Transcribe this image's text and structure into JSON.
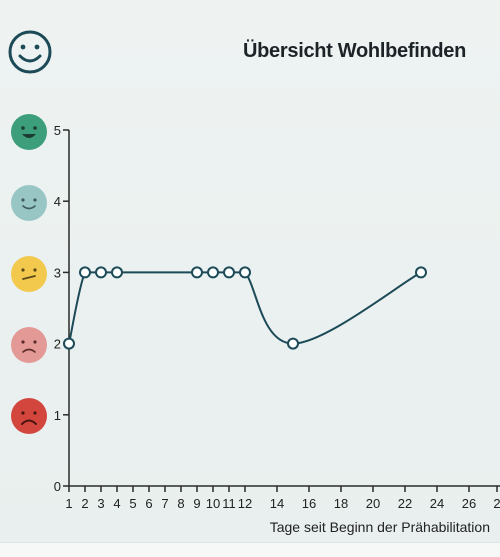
{
  "header": {
    "title": "Übersicht Wohlbefinden",
    "icon": "smiley-face-icon"
  },
  "colors": {
    "line": "#1c4a57",
    "axis": "#2a2a2a",
    "mood_5": "#3d9e7b",
    "mood_4": "#98c6c4",
    "mood_3": "#f2c94c",
    "mood_2": "#e39a96",
    "mood_1": "#d2463d"
  },
  "mood_scale": [
    {
      "level": 5,
      "icon": "very-happy-face-icon",
      "color": "#3d9e7b"
    },
    {
      "level": 4,
      "icon": "happy-face-icon",
      "color": "#98c6c4"
    },
    {
      "level": 3,
      "icon": "neutral-face-icon",
      "color": "#f2c94c"
    },
    {
      "level": 2,
      "icon": "sad-face-icon",
      "color": "#e39a96"
    },
    {
      "level": 1,
      "icon": "very-sad-face-icon",
      "color": "#d2463d"
    }
  ],
  "chart_data": {
    "type": "line",
    "title": "Übersicht Wohlbefinden",
    "xlabel": "Tage seit Beginn der Prähabilitation",
    "ylabel": "",
    "x_ticks": [
      "1",
      "2",
      "3",
      "4",
      "5",
      "6",
      "7",
      "8",
      "9",
      "10",
      "11",
      "12",
      "14",
      "16",
      "18",
      "20",
      "22",
      "24",
      "26",
      "2"
    ],
    "y_ticks": [
      "0",
      "1",
      "2",
      "3",
      "4",
      "5"
    ],
    "ylim": [
      0,
      5
    ],
    "series": [
      {
        "x": [
          1,
          2,
          3,
          4,
          9,
          10,
          11,
          12,
          15,
          23
        ],
        "y": [
          2,
          3,
          3,
          3,
          3,
          3,
          3,
          3,
          2,
          3
        ]
      }
    ],
    "grid": false,
    "markers": "open-circle",
    "smooth": true
  }
}
